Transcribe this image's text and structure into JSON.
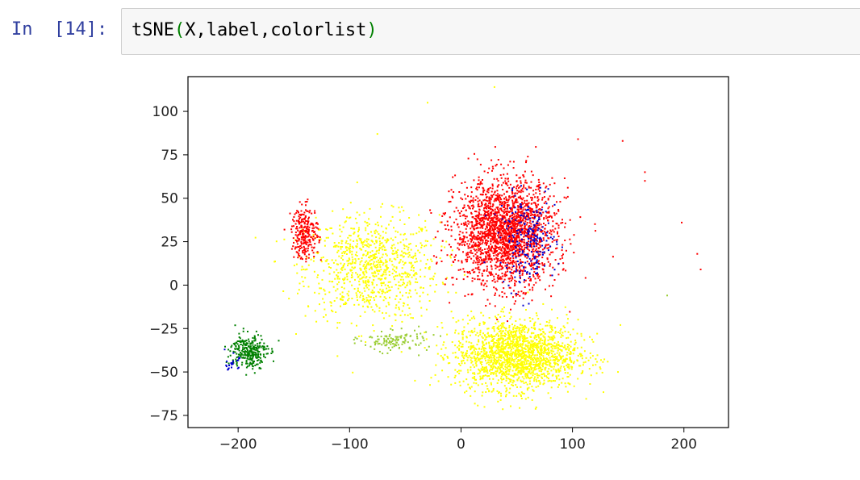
{
  "cell": {
    "prompt_in": "In",
    "prompt_count": "[14]:",
    "code_func": "tSNE",
    "code_args": "X,label,colorlist"
  },
  "chart_data": {
    "type": "scatter",
    "title": "",
    "xlabel": "",
    "ylabel": "",
    "xlim": [
      -245,
      240
    ],
    "ylim": [
      -82,
      120
    ],
    "xticks": [
      -200,
      -100,
      0,
      100,
      200
    ],
    "yticks": [
      -75,
      -50,
      -25,
      0,
      25,
      50,
      75,
      100
    ],
    "xtick_labels": [
      "−200",
      "−100",
      "0",
      "100",
      "200"
    ],
    "ytick_labels": [
      "−75",
      "−50",
      "−25",
      "0",
      "25",
      "50",
      "75",
      "100"
    ],
    "grid": false,
    "colors": {
      "red": "#ff0000",
      "yellow": "#ffff00",
      "blue": "#0000cd",
      "green": "#008000"
    },
    "clusters": [
      {
        "name": "",
        "color": "#ffff00",
        "center": [
          -80,
          10
        ],
        "spread": [
          60,
          30
        ],
        "count": 900
      },
      {
        "name": "",
        "color": "#ffff00",
        "center": [
          50,
          -40
        ],
        "spread": [
          55,
          20
        ],
        "count": 1800
      },
      {
        "name": "",
        "color": "#ff0000",
        "center": [
          40,
          30
        ],
        "spread": [
          45,
          30
        ],
        "count": 2200
      },
      {
        "name": "",
        "color": "#ff0000",
        "center": [
          -140,
          30
        ],
        "spread": [
          12,
          15
        ],
        "count": 260
      },
      {
        "name": "",
        "color": "#0000cd",
        "center": [
          60,
          25
        ],
        "spread": [
          25,
          25
        ],
        "count": 220
      },
      {
        "name": "",
        "color": "#008000",
        "center": [
          -190,
          -38
        ],
        "spread": [
          16,
          10
        ],
        "count": 280
      },
      {
        "name": "",
        "color": "#0000cd",
        "center": [
          -205,
          -45
        ],
        "spread": [
          6,
          5
        ],
        "count": 25
      },
      {
        "name": "",
        "color": "#9acd32",
        "center": [
          -60,
          -32
        ],
        "spread": [
          30,
          6
        ],
        "count": 120
      }
    ],
    "outliers": [
      {
        "x": 145,
        "y": 83,
        "color": "#ff0000"
      },
      {
        "x": 165,
        "y": 65,
        "color": "#ff0000"
      },
      {
        "x": 165,
        "y": 60,
        "color": "#ff0000"
      },
      {
        "x": 198,
        "y": 36,
        "color": "#ff0000"
      },
      {
        "x": 212,
        "y": 18,
        "color": "#ff0000"
      },
      {
        "x": 215,
        "y": 9,
        "color": "#ff0000"
      },
      {
        "x": 185,
        "y": -6,
        "color": "#9acd32"
      },
      {
        "x": 143,
        "y": -23,
        "color": "#ffff00"
      },
      {
        "x": -30,
        "y": 105,
        "color": "#ffff00"
      },
      {
        "x": 30,
        "y": 114,
        "color": "#ffff00"
      },
      {
        "x": -75,
        "y": 87,
        "color": "#ffff00"
      },
      {
        "x": 105,
        "y": 84,
        "color": "#ff0000"
      },
      {
        "x": 60,
        "y": 74,
        "color": "#ff0000"
      }
    ]
  }
}
